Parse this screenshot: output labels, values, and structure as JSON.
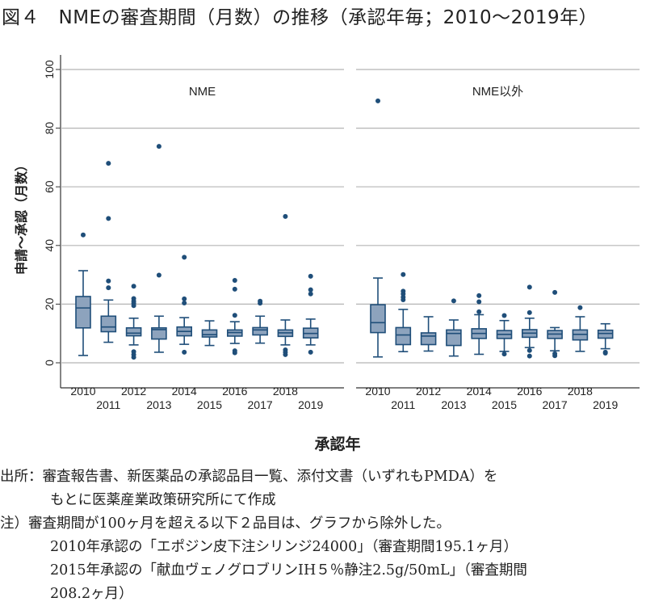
{
  "title": "図４　NMEの審査期間（月数）の推移（承認年毎；2010〜2019年）",
  "chart_data": {
    "type": "box",
    "ylabel": "申請〜承認（月数）",
    "xlabel": "承認年",
    "ylim": [
      0,
      100
    ],
    "yticks": [
      0,
      20,
      40,
      60,
      80,
      100
    ],
    "grid": true,
    "color": "#1f4e79",
    "box_fill": "#8da3bd",
    "categories": [
      "2010",
      "2011",
      "2012",
      "2013",
      "2014",
      "2015",
      "2016",
      "2017",
      "2018",
      "2019"
    ],
    "panels": [
      {
        "name": "NME",
        "boxes": [
          {
            "low": 2.5,
            "q1": 11.9,
            "median": 18.7,
            "q3": 22.6,
            "high": 31.4,
            "outliers": [
              43.6
            ]
          },
          {
            "low": 7.0,
            "q1": 10.6,
            "median": 12.2,
            "q3": 15.9,
            "high": 21.4,
            "outliers": [
              68,
              49.2,
              27.9,
              25.6
            ]
          },
          {
            "low": 6.1,
            "q1": 9.2,
            "median": 10.1,
            "q3": 11.9,
            "high": 15.2,
            "outliers": [
              26.1,
              21.9,
              21.0,
              20.3,
              19.5,
              3.8,
              2.8,
              1.9
            ]
          },
          {
            "low": 3.6,
            "q1": 8.1,
            "median": 11.3,
            "q3": 11.9,
            "high": 15.9,
            "outliers": [
              73.8,
              29.9
            ]
          },
          {
            "low": 6.3,
            "q1": 9.2,
            "median": 10.7,
            "q3": 12.2,
            "high": 15.4,
            "outliers": [
              36.0,
              21.8,
              20.4,
              3.6
            ]
          },
          {
            "low": 5.9,
            "q1": 8.8,
            "median": 9.6,
            "q3": 11.2,
            "high": 14.3,
            "outliers": []
          },
          {
            "low": 6.6,
            "q1": 9.1,
            "median": 10.3,
            "q3": 11.2,
            "high": 14.0,
            "outliers": [
              28.1,
              25.1,
              16.2,
              4.1,
              3.4
            ]
          },
          {
            "low": 6.7,
            "q1": 9.5,
            "median": 11.2,
            "q3": 12.0,
            "high": 15.9,
            "outliers": [
              21.0,
              20.3
            ]
          },
          {
            "low": 6.1,
            "q1": 9.0,
            "median": 10.2,
            "q3": 11.2,
            "high": 14.6,
            "outliers": [
              49.9,
              4.4,
              3.6,
              2.8
            ]
          },
          {
            "low": 6.1,
            "q1": 8.5,
            "median": 10.0,
            "q3": 11.8,
            "high": 14.9,
            "outliers": [
              29.5,
              24.9,
              23.5,
              3.6
            ]
          }
        ]
      },
      {
        "name": "NME以外",
        "boxes": [
          {
            "low": 2.0,
            "q1": 10.3,
            "median": 13.7,
            "q3": 19.8,
            "high": 28.9,
            "outliers": [
              89.3
            ]
          },
          {
            "low": 3.8,
            "q1": 6.2,
            "median": 9.5,
            "q3": 12.0,
            "high": 18.2,
            "outliers": [
              30.1,
              24.4,
              23.5,
              22.4,
              21.5
            ]
          },
          {
            "low": 4.0,
            "q1": 6.2,
            "median": 9.1,
            "q3": 10.2,
            "high": 15.7,
            "outliers": []
          },
          {
            "low": 2.3,
            "q1": 5.9,
            "median": 10.0,
            "q3": 11.2,
            "high": 14.6,
            "outliers": [
              21.1
            ]
          },
          {
            "low": 2.9,
            "q1": 8.3,
            "median": 10.0,
            "q3": 11.6,
            "high": 16.4,
            "outliers": [
              22.9,
              20.8,
              17.4
            ]
          },
          {
            "low": 3.9,
            "q1": 8.3,
            "median": 9.7,
            "q3": 11.0,
            "high": 14.4,
            "outliers": [
              16.1,
              3.0
            ]
          },
          {
            "low": 5.2,
            "q1": 8.7,
            "median": 10.1,
            "q3": 11.3,
            "high": 15.2,
            "outliers": [
              25.8,
              17.1,
              4.2,
              2.3
            ]
          },
          {
            "low": 4.1,
            "q1": 8.3,
            "median": 9.8,
            "q3": 11.0,
            "high": 12.0,
            "outliers": [
              24.0,
              3.1,
              2.4
            ]
          },
          {
            "low": 3.9,
            "q1": 7.8,
            "median": 9.7,
            "q3": 11.2,
            "high": 15.7,
            "outliers": [
              18.8
            ]
          },
          {
            "low": 4.8,
            "q1": 8.4,
            "median": 10.0,
            "q3": 11.1,
            "high": 13.3,
            "outliers": [
              3.6,
              3.3
            ]
          }
        ]
      }
    ]
  },
  "notes": {
    "source_1": "出所：審査報告書、新医薬品の承認品目一覧、添付文書（いずれもPMDA）を",
    "source_2": "もとに医薬産業政策研究所にて作成",
    "note_1": "注）審査期間が100ヶ月を超える以下２品目は、グラフから除外した。",
    "note_2": "2010年承認の「エポジン皮下注シリンジ24000」（審査期間195.1ヶ月）",
    "note_3": "2015年承認の「献血ヴェノグロブリンIH５％静注2.5g/50mL」（審査期間",
    "note_4": "208.2ヶ月）"
  }
}
